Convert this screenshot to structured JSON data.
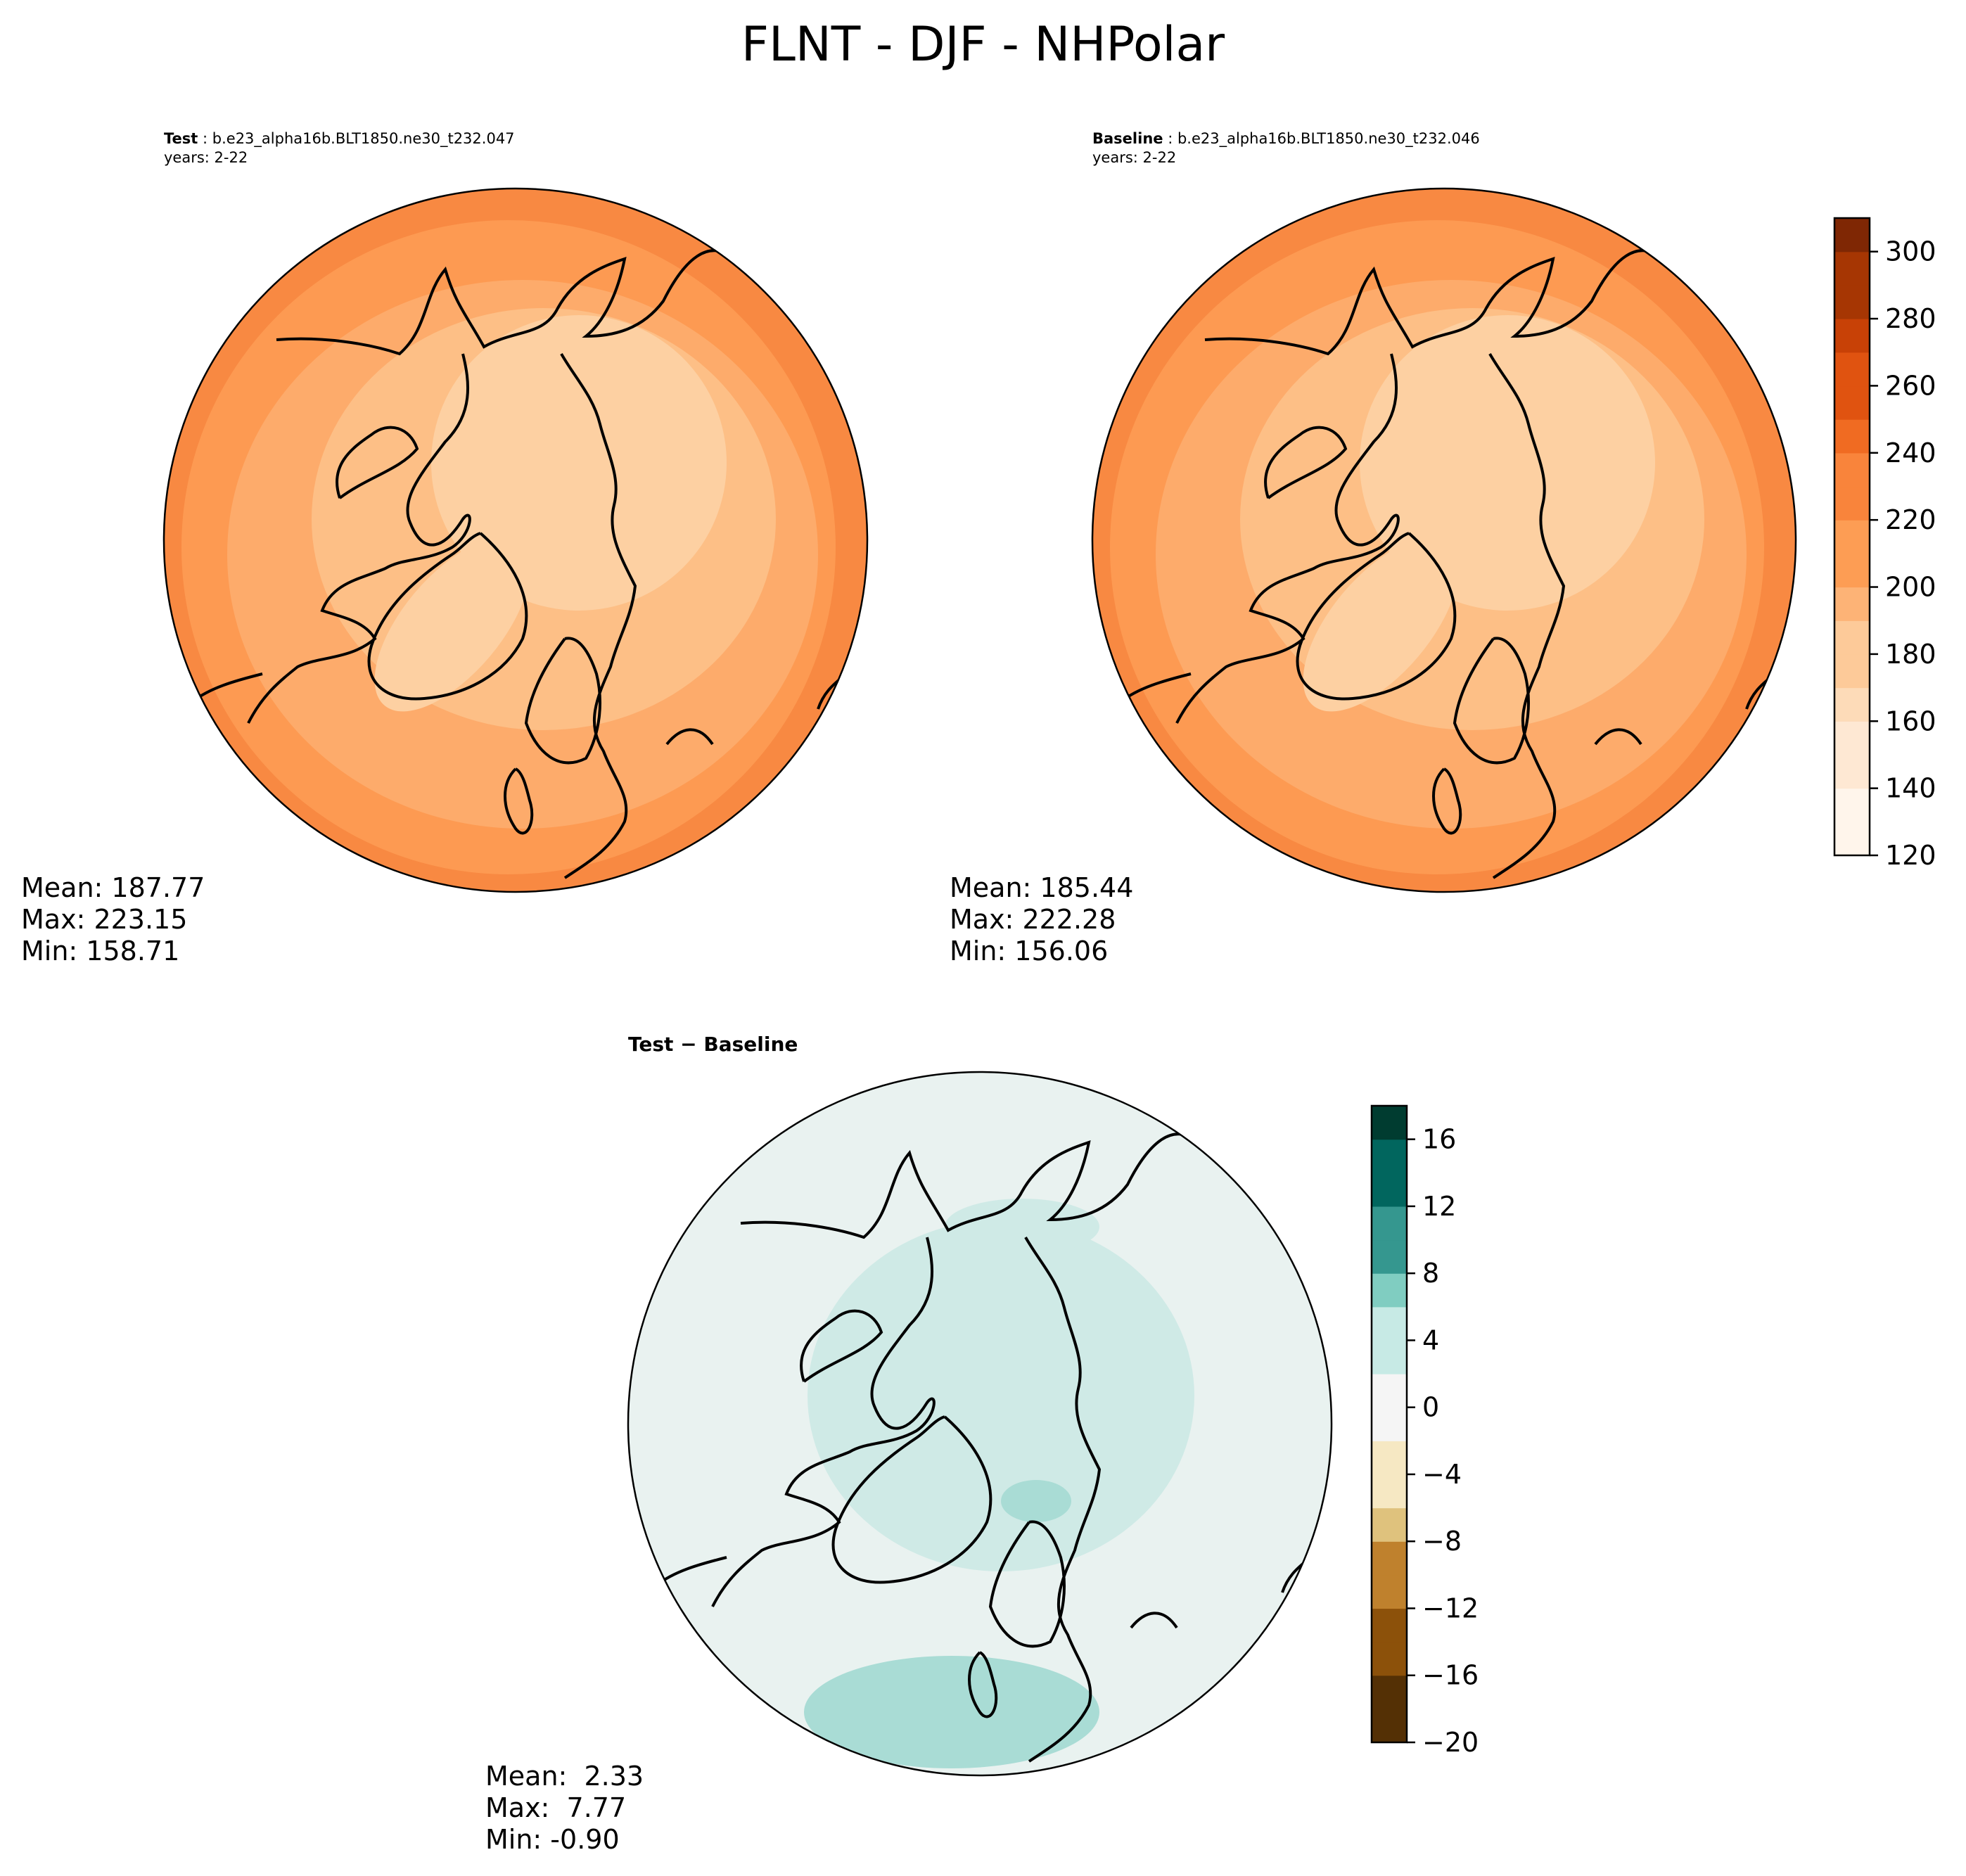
{
  "title": "FLNT - DJF - NHPolar",
  "colors": {
    "abs_scale": [
      "#fff5eb",
      "#fee8d3",
      "#fddbb8",
      "#fdca99",
      "#fdb376",
      "#fd9d54",
      "#f9843b",
      "#f06b22",
      "#e05310",
      "#c84106",
      "#a63603",
      "#7f2704"
    ],
    "abs_map": {
      "c1": "#fdd0a2",
      "c2": "#fdbf86",
      "c3": "#fdab6b",
      "c4": "#fd9a52",
      "c5": "#f88942"
    },
    "diff_scale": [
      "#543005",
      "#8c510a",
      "#bf812d",
      "#dfc27d",
      "#f6e8c3",
      "#f5f5f5",
      "#c7eae5",
      "#80cdc1",
      "#35978f",
      "#01665e",
      "#003c30"
    ],
    "diff_map": {
      "bg": "#e9f2f0",
      "c1": "#cfeae6",
      "c2": "#a9dcd5"
    },
    "coastline": "#000000"
  },
  "panels": [
    {
      "id": "test",
      "label": "Test",
      "case": "b.e23_alpha16b.BLT1850.ne30_t232.047",
      "years": "years: 2-22",
      "stats": {
        "mean": "Mean: 187.77",
        "max": "Max: 223.15",
        "min": "Min: 158.71"
      }
    },
    {
      "id": "baseline",
      "label": "Baseline",
      "case": "b.e23_alpha16b.BLT1850.ne30_t232.046",
      "years": "years: 2-22",
      "stats": {
        "mean": "Mean: 185.44",
        "max": "Max: 222.28",
        "min": "Min: 156.06"
      }
    },
    {
      "id": "diff",
      "label": "Test − Baseline",
      "stats": {
        "mean": "Mean:  2.33",
        "max": "Max:  7.77",
        "min": "Min: -0.90"
      }
    }
  ],
  "chart_data": [
    {
      "type": "heatmap",
      "panel": "test",
      "projection": "north polar stereographic",
      "colorbar": {
        "min": 120,
        "max": 310,
        "ticks": [
          120,
          140,
          160,
          180,
          200,
          220,
          240,
          260,
          280,
          300
        ]
      },
      "stats": {
        "mean": 187.77,
        "max": 223.15,
        "min": 158.71
      }
    },
    {
      "type": "heatmap",
      "panel": "baseline",
      "projection": "north polar stereographic",
      "colorbar": {
        "min": 120,
        "max": 310,
        "ticks": [
          120,
          140,
          160,
          180,
          200,
          220,
          240,
          260,
          280,
          300
        ]
      },
      "stats": {
        "mean": 185.44,
        "max": 222.28,
        "min": 156.06
      }
    },
    {
      "type": "heatmap",
      "panel": "diff",
      "projection": "north polar stereographic",
      "colorbar": {
        "min": -20,
        "max": 18,
        "ticks": [
          -20,
          -16,
          -12,
          -8,
          -4,
          0,
          4,
          8,
          12,
          16
        ]
      },
      "stats": {
        "mean": 2.33,
        "max": 7.77,
        "min": -0.9
      }
    }
  ]
}
